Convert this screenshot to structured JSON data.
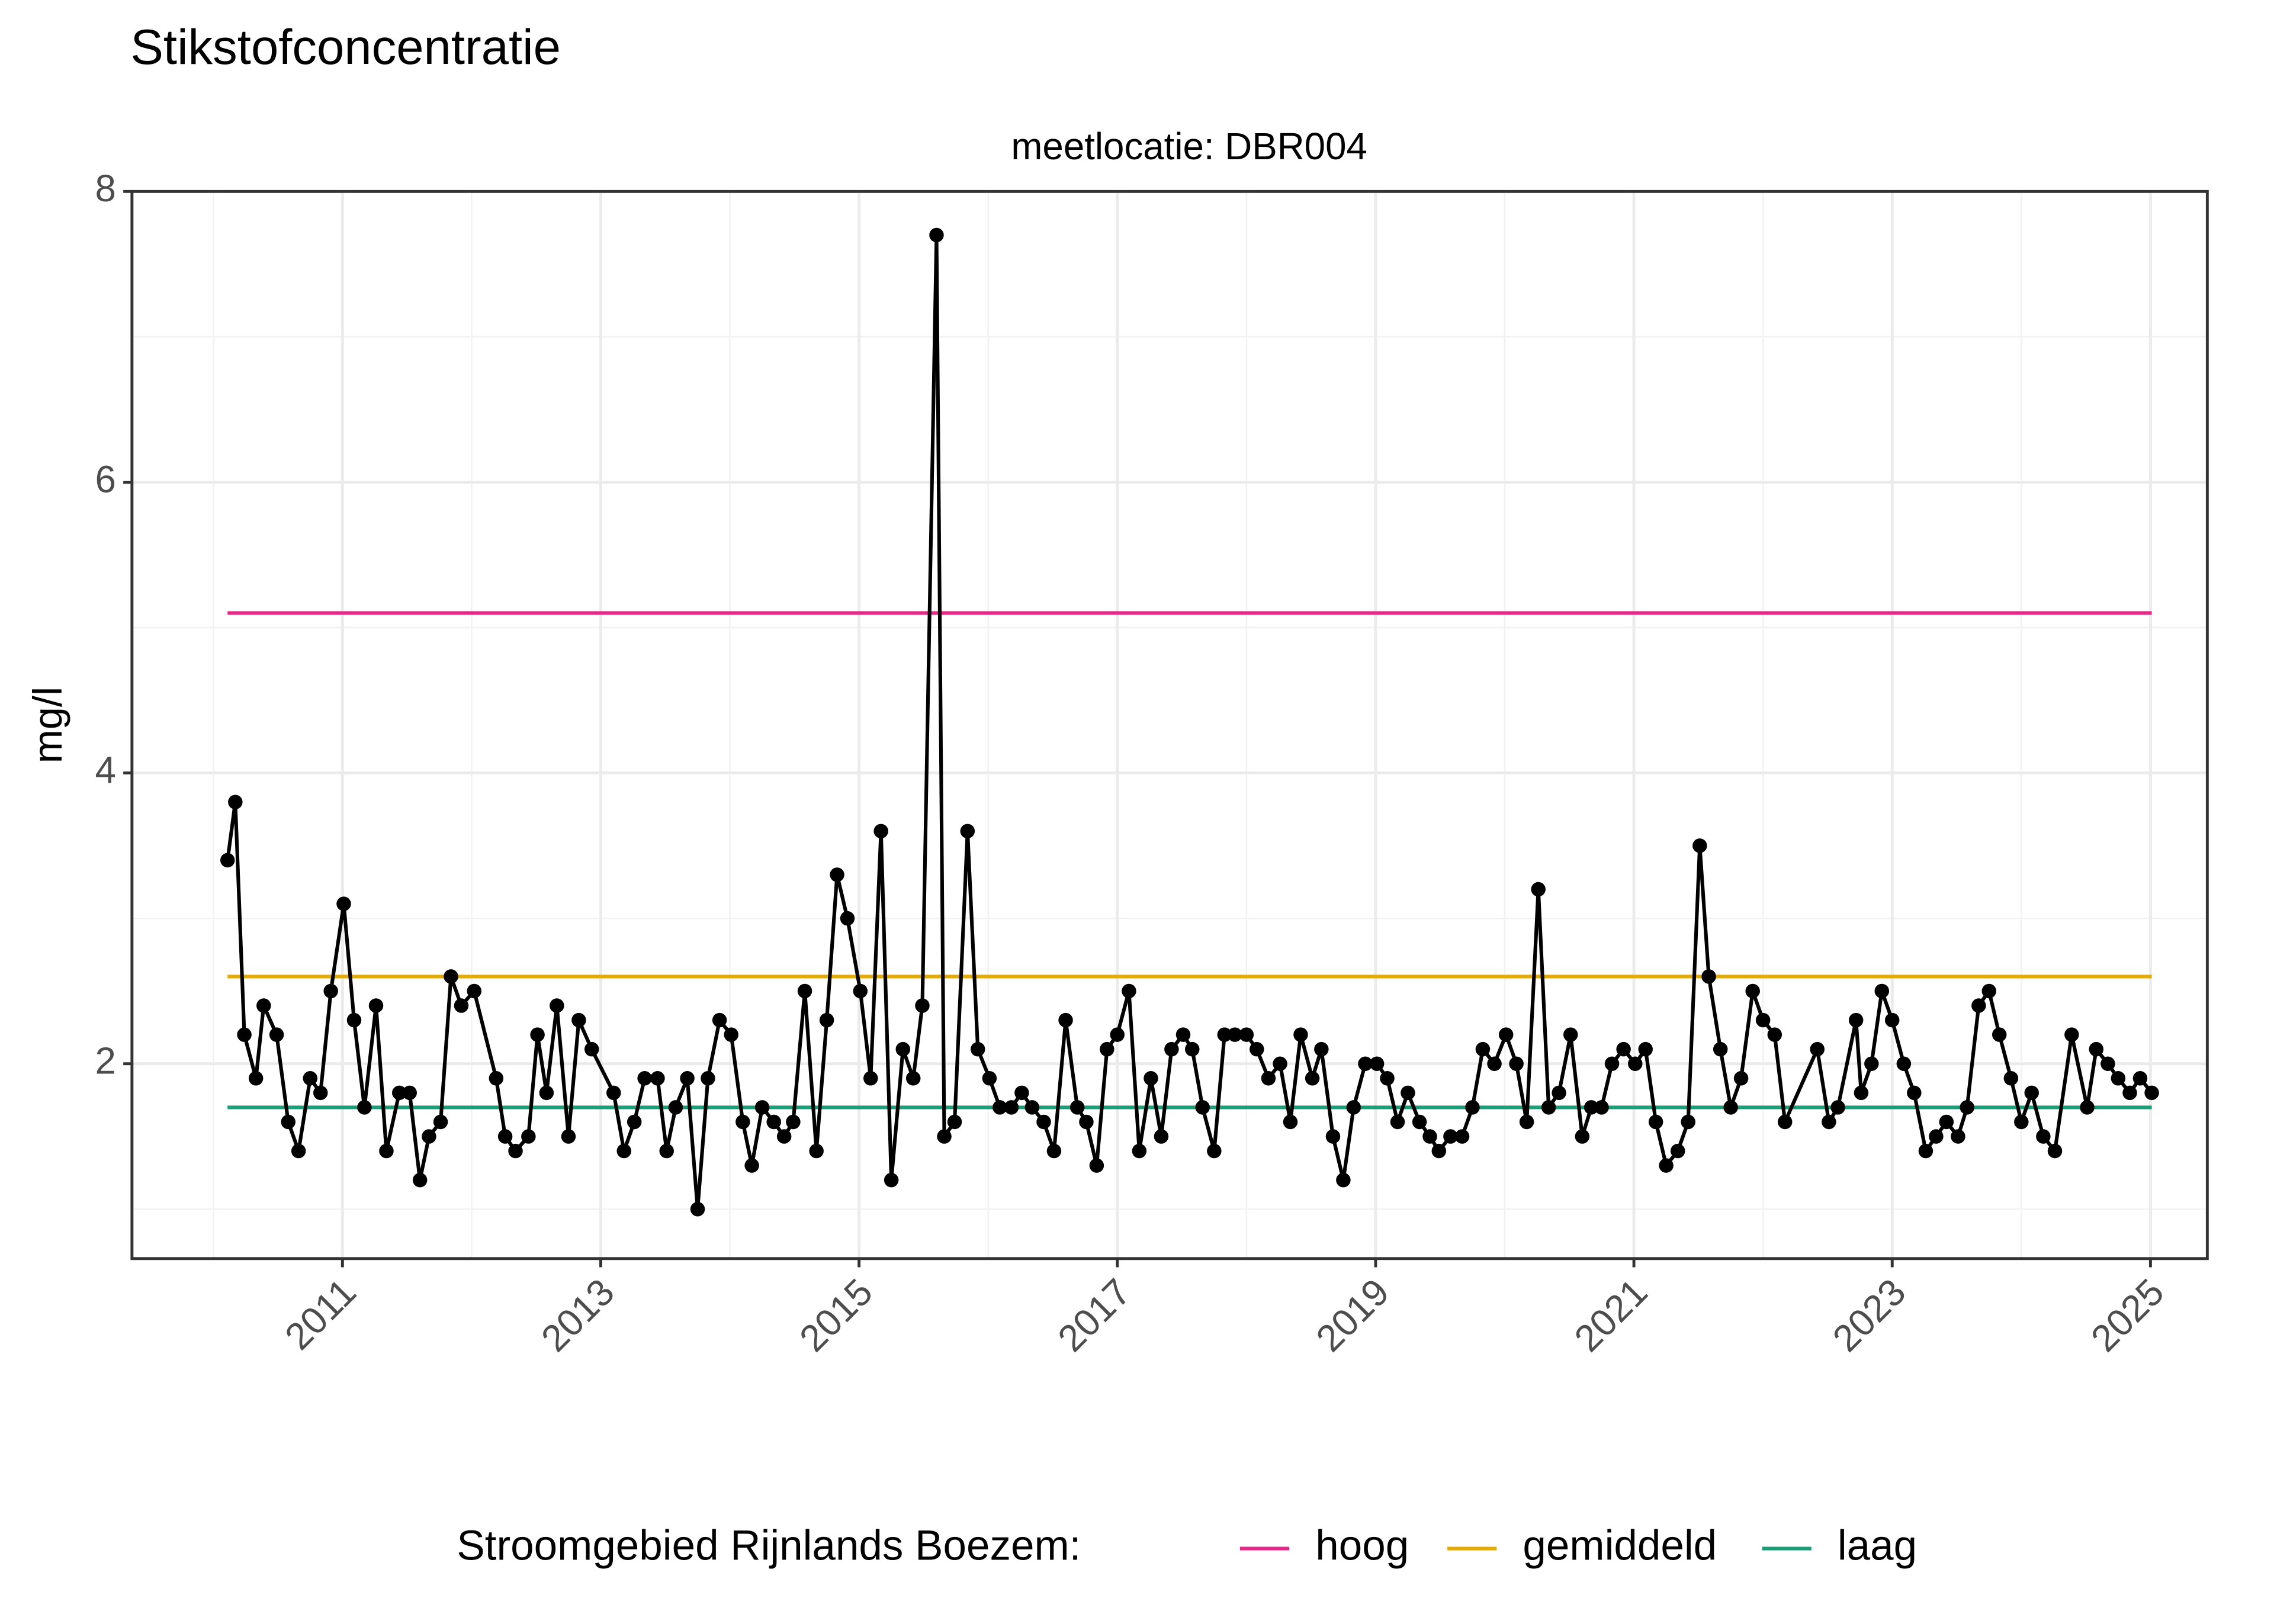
{
  "chart_data": {
    "type": "line",
    "title": "Stikstofconcentratie",
    "facet_label": "meetlocatie: DBR004",
    "y_label": "mg/l",
    "legend_title": "Stroomgebied Rijnlands Boezem:",
    "xlim": [
      2009.37,
      2025.44
    ],
    "xticks": [
      2011,
      2013,
      2015,
      2017,
      2019,
      2021,
      2023,
      2025
    ],
    "ylim": [
      0.66,
      8
    ],
    "yticks": [
      2,
      4,
      6,
      8
    ],
    "grid": true,
    "x": [
      2010.11,
      2010.17,
      2010.24,
      2010.33,
      2010.39,
      2010.49,
      2010.58,
      2010.66,
      2010.75,
      2010.83,
      2010.91,
      2011.01,
      2011.09,
      2011.17,
      2011.26,
      2011.34,
      2011.44,
      2011.52,
      2011.6,
      2011.67,
      2011.76,
      2011.84,
      2011.92,
      2012.02,
      2012.19,
      2012.26,
      2012.34,
      2012.44,
      2012.51,
      2012.58,
      2012.66,
      2012.75,
      2012.83,
      2012.93,
      2013.1,
      2013.18,
      2013.26,
      2013.34,
      2013.44,
      2013.51,
      2013.58,
      2013.67,
      2013.75,
      2013.83,
      2013.92,
      2014.01,
      2014.1,
      2014.17,
      2014.25,
      2014.34,
      2014.42,
      2014.49,
      2014.58,
      2014.67,
      2014.75,
      2014.83,
      2014.91,
      2015.01,
      2015.09,
      2015.17,
      2015.25,
      2015.34,
      2015.42,
      2015.49,
      2015.6,
      2015.66,
      2015.74,
      2015.84,
      2015.92,
      2016.01,
      2016.09,
      2016.18,
      2016.26,
      2016.34,
      2016.43,
      2016.51,
      2016.6,
      2016.69,
      2016.76,
      2016.84,
      2016.92,
      2017.0,
      2017.09,
      2017.17,
      2017.26,
      2017.34,
      2017.42,
      2017.51,
      2017.58,
      2017.66,
      2017.75,
      2017.83,
      2017.91,
      2018.0,
      2018.08,
      2018.17,
      2018.26,
      2018.34,
      2018.42,
      2018.51,
      2018.58,
      2018.67,
      2018.75,
      2018.83,
      2018.92,
      2019.01,
      2019.09,
      2019.17,
      2019.25,
      2019.34,
      2019.42,
      2019.49,
      2019.58,
      2019.67,
      2019.75,
      2019.83,
      2019.92,
      2020.01,
      2020.09,
      2020.17,
      2020.26,
      2020.34,
      2020.42,
      2020.51,
      2020.6,
      2020.67,
      2020.75,
      2020.83,
      2020.92,
      2021.01,
      2021.09,
      2021.17,
      2021.25,
      2021.34,
      2021.42,
      2021.51,
      2021.58,
      2021.67,
      2021.75,
      2021.83,
      2021.92,
      2022.0,
      2022.09,
      2022.17,
      2022.42,
      2022.51,
      2022.58,
      2022.72,
      2022.76,
      2022.84,
      2022.92,
      2023.0,
      2023.09,
      2023.17,
      2023.26,
      2023.34,
      2023.42,
      2023.51,
      2023.58,
      2023.67,
      2023.75,
      2023.83,
      2023.92,
      2024.0,
      2024.08,
      2024.17,
      2024.26,
      2024.39,
      2024.51,
      2024.58,
      2024.67,
      2024.75,
      2024.84,
      2024.92,
      2025.01
    ],
    "series": [
      {
        "color": "#000000",
        "values": [
          3.4,
          3.8,
          2.2,
          1.9,
          2.4,
          2.2,
          1.6,
          1.4,
          1.9,
          1.8,
          2.5,
          3.1,
          2.3,
          1.7,
          2.4,
          1.4,
          1.8,
          1.8,
          1.2,
          1.5,
          1.6,
          2.6,
          2.4,
          2.5,
          1.9,
          1.5,
          1.4,
          1.5,
          2.2,
          1.8,
          2.4,
          1.5,
          2.3,
          2.1,
          1.8,
          1.4,
          1.6,
          1.9,
          1.9,
          1.4,
          1.7,
          1.9,
          1.0,
          1.9,
          2.3,
          2.2,
          1.6,
          1.3,
          1.7,
          1.6,
          1.5,
          1.6,
          2.5,
          1.4,
          2.3,
          3.3,
          3.0,
          2.5,
          1.9,
          3.6,
          1.2,
          2.1,
          1.9,
          2.4,
          7.7,
          1.5,
          1.6,
          3.6,
          2.1,
          1.9,
          1.7,
          1.7,
          1.8,
          1.7,
          1.6,
          1.4,
          2.3,
          1.7,
          1.6,
          1.3,
          2.1,
          2.2,
          2.5,
          1.4,
          1.9,
          1.5,
          2.1,
          2.2,
          2.1,
          1.7,
          1.4,
          2.2,
          2.2,
          2.2,
          2.1,
          1.9,
          2.0,
          1.6,
          2.2,
          1.9,
          2.1,
          1.5,
          1.2,
          1.7,
          2.0,
          2.0,
          1.9,
          1.6,
          1.8,
          1.6,
          1.5,
          1.4,
          1.5,
          1.5,
          1.7,
          2.1,
          2.0,
          2.2,
          2.0,
          1.6,
          3.2,
          1.7,
          1.8,
          2.2,
          1.5,
          1.7,
          1.7,
          2.0,
          2.1,
          2.0,
          2.1,
          1.6,
          1.3,
          1.4,
          1.6,
          3.5,
          2.6,
          2.1,
          1.7,
          1.9,
          2.5,
          2.3,
          2.2,
          1.6,
          2.1,
          1.6,
          1.7,
          2.3,
          1.8,
          2.0,
          2.5,
          2.3,
          2.0,
          1.8,
          1.4,
          1.5,
          1.6,
          1.5,
          1.7,
          2.4,
          2.5,
          2.2,
          1.9,
          1.6,
          1.8,
          1.5,
          1.4,
          2.2,
          1.7,
          2.1,
          2.0,
          1.9,
          1.8,
          1.9,
          1.8
        ]
      }
    ],
    "thresholds": [
      {
        "name": "hoog",
        "color": "#e7298a",
        "value": 5.1
      },
      {
        "name": "gemiddeld",
        "color": "#e6ab02",
        "value": 2.6
      },
      {
        "name": "laag",
        "color": "#1b9e77",
        "value": 1.7
      }
    ]
  }
}
